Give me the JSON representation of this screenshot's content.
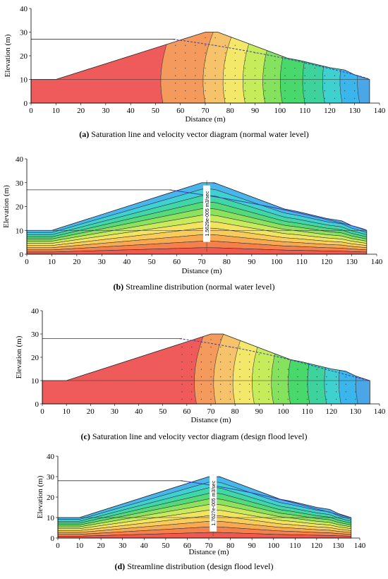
{
  "chart_data": [
    {
      "type": "contour",
      "kind": "velocity",
      "panel_label": "(a)",
      "caption": "Saturation line and velocity vector diagram (normal water level)",
      "xlabel": "Distance (m)",
      "ylabel": "Elevation (m)",
      "xlim": [
        0,
        140
      ],
      "ylim": [
        0,
        40
      ],
      "xticks": [
        "0",
        "10",
        "20",
        "30",
        "40",
        "50",
        "60",
        "70",
        "80",
        "90",
        "100",
        "110",
        "120",
        "130",
        "140"
      ],
      "yticks": [
        "0",
        "10",
        "20",
        "30",
        "40"
      ],
      "upstream_water_level": 27,
      "tailwater_level": 10,
      "annotation": ""
    },
    {
      "type": "contour",
      "kind": "streamline",
      "panel_label": "(b)",
      "caption": "Streamline distribution (normal water level)",
      "xlabel": "Distance (m)",
      "ylabel": "Elevation (m)",
      "xlim": [
        0,
        140
      ],
      "ylim": [
        0,
        40
      ],
      "xticks": [
        "0",
        "10",
        "20",
        "30",
        "40",
        "50",
        "60",
        "70",
        "80",
        "90",
        "100",
        "110",
        "120",
        "130",
        "140"
      ],
      "yticks": [
        "0",
        "10",
        "20",
        "30",
        "40"
      ],
      "upstream_water_level": 27,
      "tailwater_level": 10,
      "annotation": "1.5629e-005 m3/sec"
    },
    {
      "type": "contour",
      "kind": "velocity",
      "panel_label": "(c)",
      "caption": "Saturation line and velocity vector diagram (design flood level)",
      "xlabel": "Distance (m)",
      "ylabel": "Elevation (m)",
      "xlim": [
        0,
        140
      ],
      "ylim": [
        0,
        40
      ],
      "xticks": [
        "0",
        "10",
        "20",
        "30",
        "40",
        "50",
        "60",
        "70",
        "80",
        "90",
        "100",
        "110",
        "120",
        "130",
        "140"
      ],
      "yticks": [
        "0",
        "10",
        "20",
        "30",
        "40"
      ],
      "upstream_water_level": 28,
      "tailwater_level": 10,
      "annotation": ""
    },
    {
      "type": "contour",
      "kind": "streamline",
      "panel_label": "(d)",
      "caption": "Streamline distribution (design flood level)",
      "xlabel": "Distance (m)",
      "ylabel": "Elevation (m)",
      "xlim": [
        0,
        140
      ],
      "ylim": [
        0,
        40
      ],
      "xticks": [
        "0",
        "10",
        "20",
        "30",
        "40",
        "50",
        "60",
        "70",
        "80",
        "90",
        "100",
        "110",
        "120",
        "130",
        "140"
      ],
      "yticks": [
        "0",
        "10",
        "20",
        "30",
        "40"
      ],
      "upstream_water_level": 28,
      "tailwater_level": 10,
      "annotation": "1.7627e-005 m3/sec"
    }
  ],
  "dam_profile": {
    "crest": [
      [
        0,
        10
      ],
      [
        10,
        10
      ],
      [
        70,
        30
      ],
      [
        75,
        30
      ],
      [
        103,
        19
      ],
      [
        108,
        18
      ],
      [
        120,
        15
      ],
      [
        126,
        14
      ],
      [
        130,
        12
      ],
      [
        136,
        10
      ],
      [
        136,
        0
      ],
      [
        0,
        0
      ]
    ]
  },
  "colors": {
    "velocity_bands": [
      "#ef5b5b",
      "#f39a5c",
      "#f6c36a",
      "#f4e86a",
      "#c6ec5c",
      "#85e25e",
      "#49d86c",
      "#3ed39c",
      "#3ed1cf",
      "#3bb6ec",
      "#4aa6e6"
    ],
    "streamline_bands": [
      "#f0594f",
      "#f4814c",
      "#f7a852",
      "#f8cc5a",
      "#f2e460",
      "#c8ea5c",
      "#8ee15f",
      "#55d97a",
      "#41d6a8",
      "#40cfd2",
      "#49b5ec"
    ],
    "saturation_line": "#3b3bb5",
    "annotation_bg": "#ffffff"
  }
}
